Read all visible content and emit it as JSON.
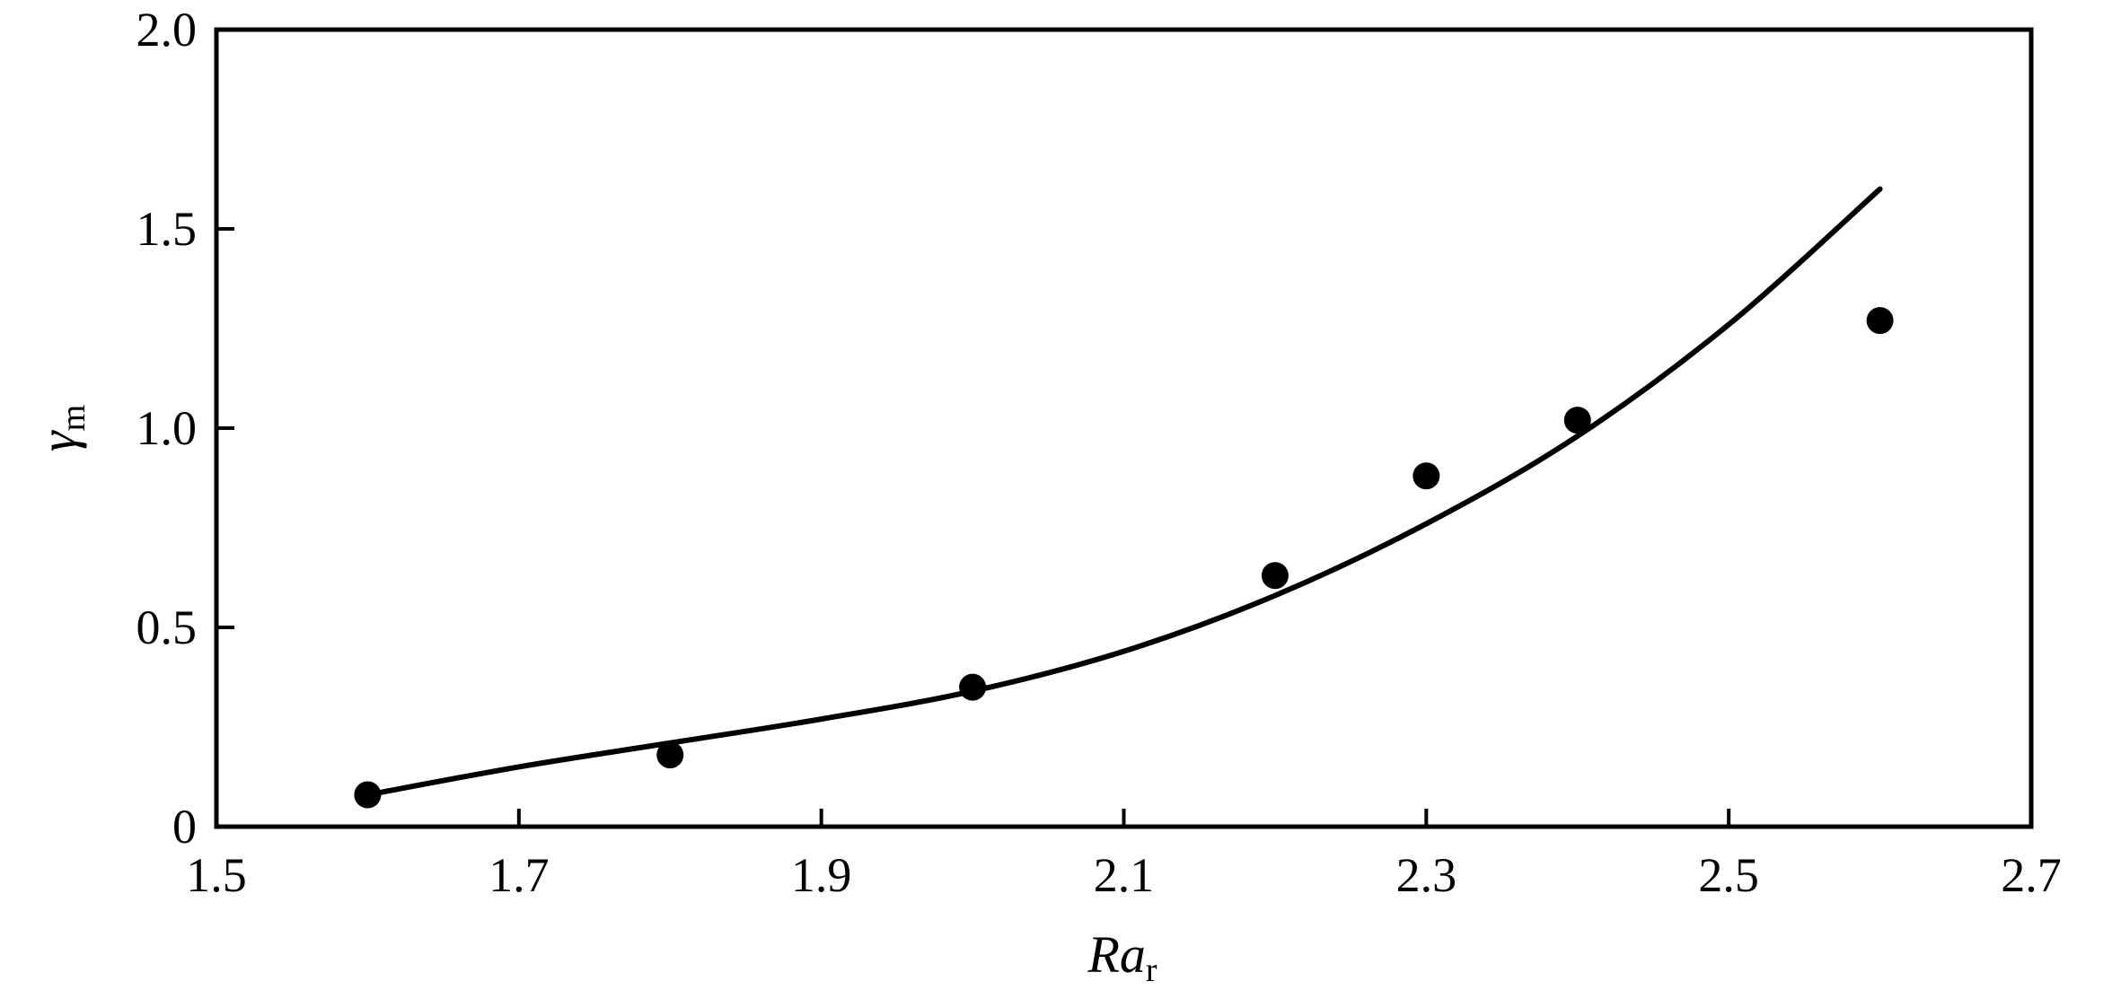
{
  "chart_data": {
    "type": "scatter",
    "title": "",
    "xlabel": {
      "main": "Ra",
      "sub": "r"
    },
    "ylabel": {
      "main": "γ",
      "sub": "m"
    },
    "xlim": [
      1.5,
      2.7
    ],
    "ylim": [
      0,
      2.0
    ],
    "x_ticks": [
      "1.5",
      "1.7",
      "1.9",
      "2.1",
      "2.3",
      "2.5",
      "2.7"
    ],
    "y_ticks": [
      "0",
      "0.5",
      "1.0",
      "1.5",
      "2.0"
    ],
    "grid": false,
    "legend": "none",
    "series": [
      {
        "kind": "points",
        "x": [
          1.6,
          1.8,
          2.0,
          2.2,
          2.3,
          2.4,
          2.6
        ],
        "y": [
          0.08,
          0.18,
          0.35,
          0.63,
          0.88,
          1.02,
          1.27
        ]
      },
      {
        "kind": "line",
        "x": [
          1.6,
          1.7,
          1.8,
          1.9,
          2.0,
          2.1,
          2.2,
          2.3,
          2.4,
          2.5,
          2.6
        ],
        "y": [
          0.08,
          0.15,
          0.21,
          0.27,
          0.34,
          0.44,
          0.58,
          0.76,
          0.98,
          1.26,
          1.6
        ]
      }
    ],
    "colors": {
      "ink": "#000000",
      "background": "#ffffff"
    }
  }
}
